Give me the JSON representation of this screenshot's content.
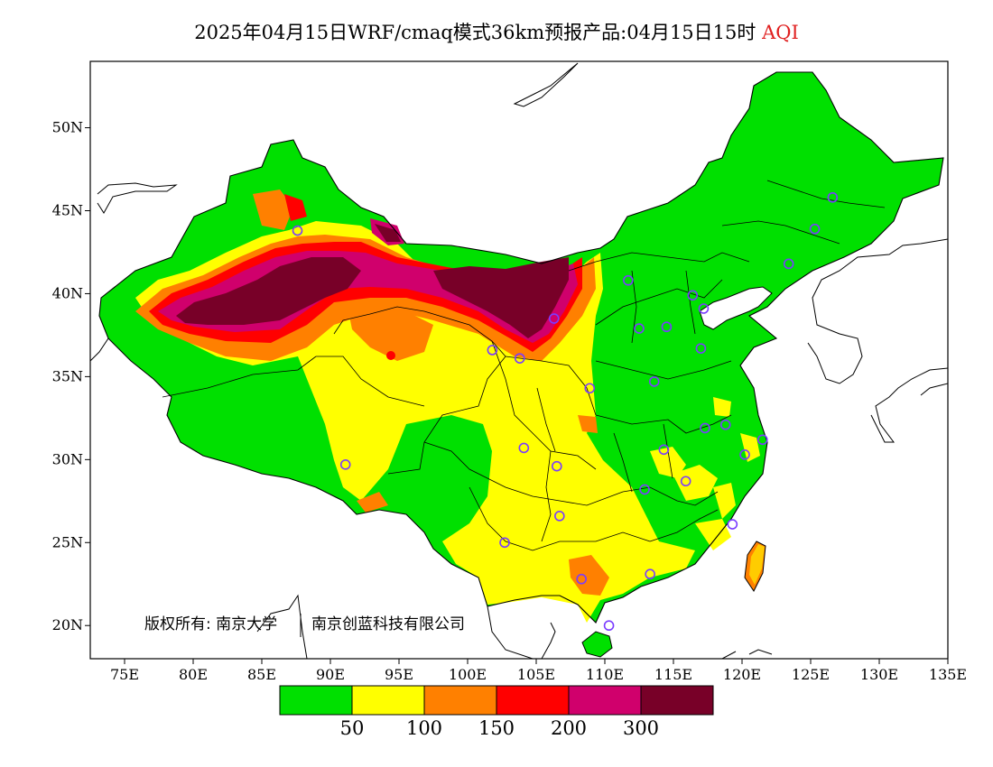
{
  "title": {
    "main": "2025年04月15日WRF/cmaq模式36km预报产品:04月15日15时",
    "variable": "AQI"
  },
  "axes": {
    "x_ticks": [
      "75E",
      "80E",
      "85E",
      "90E",
      "95E",
      "100E",
      "105E",
      "110E",
      "115E",
      "120E",
      "125E",
      "130E",
      "135E"
    ],
    "y_ticks": [
      "50N",
      "45N",
      "40N",
      "35N",
      "30N",
      "25N",
      "20N"
    ]
  },
  "copyright": {
    "prefix": "版权所有: 南京大学",
    "suffix": "南京创蓝科技有限公司"
  },
  "legend": {
    "colors": [
      "#00e000",
      "#ffff00",
      "#ff8000",
      "#ff0000",
      "#d0006c",
      "#780028"
    ],
    "labels": [
      "50",
      "100",
      "150",
      "200",
      "300"
    ]
  },
  "stations": [
    {
      "lon": 87.6,
      "lat": 43.8
    },
    {
      "lon": 91.1,
      "lat": 29.7
    },
    {
      "lon": 101.8,
      "lat": 36.6
    },
    {
      "lon": 103.8,
      "lat": 36.1
    },
    {
      "lon": 106.3,
      "lat": 38.5
    },
    {
      "lon": 108.9,
      "lat": 34.3
    },
    {
      "lon": 104.1,
      "lat": 30.7
    },
    {
      "lon": 106.5,
      "lat": 29.6
    },
    {
      "lon": 106.7,
      "lat": 26.6
    },
    {
      "lon": 102.7,
      "lat": 25.0
    },
    {
      "lon": 108.3,
      "lat": 22.8
    },
    {
      "lon": 110.3,
      "lat": 20.0
    },
    {
      "lon": 113.3,
      "lat": 23.1
    },
    {
      "lon": 112.9,
      "lat": 28.2
    },
    {
      "lon": 114.3,
      "lat": 30.6
    },
    {
      "lon": 115.9,
      "lat": 28.7
    },
    {
      "lon": 117.3,
      "lat": 31.9
    },
    {
      "lon": 119.3,
      "lat": 26.1
    },
    {
      "lon": 120.2,
      "lat": 30.3
    },
    {
      "lon": 118.8,
      "lat": 32.1
    },
    {
      "lon": 121.5,
      "lat": 31.2
    },
    {
      "lon": 113.6,
      "lat": 34.7
    },
    {
      "lon": 117.0,
      "lat": 36.7
    },
    {
      "lon": 112.5,
      "lat": 37.9
    },
    {
      "lon": 114.5,
      "lat": 38.0
    },
    {
      "lon": 111.7,
      "lat": 40.8
    },
    {
      "lon": 116.4,
      "lat": 39.9
    },
    {
      "lon": 117.2,
      "lat": 39.1
    },
    {
      "lon": 123.4,
      "lat": 41.8
    },
    {
      "lon": 125.3,
      "lat": 43.9
    },
    {
      "lon": 126.6,
      "lat": 45.8
    }
  ]
}
